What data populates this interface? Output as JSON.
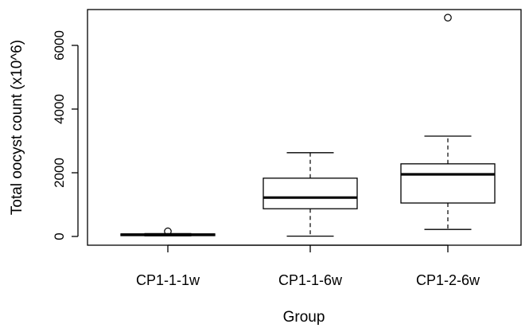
{
  "chart_data": {
    "type": "boxplot",
    "xlabel": "Group",
    "ylabel": "Total oocyst count (x10^6)",
    "categories": [
      "CP1-1-1w",
      "CP1-1-6w",
      "CP1-2-6w"
    ],
    "yticks": [
      0,
      2000,
      4000,
      6000
    ],
    "ytick_labels": [
      "0",
      "2000",
      "4000",
      "6000"
    ],
    "ylim": [
      -250,
      7000
    ],
    "boxes": [
      {
        "group": "CP1-1-1w",
        "whisker_low": 20,
        "q1": 25,
        "median": 55,
        "q3": 80,
        "whisker_high": 90,
        "outliers": [
          160
        ]
      },
      {
        "group": "CP1-1-6w",
        "whisker_low": 10,
        "q1": 870,
        "median": 1220,
        "q3": 1830,
        "whisker_high": 2630,
        "outliers": []
      },
      {
        "group": "CP1-2-6w",
        "whisker_low": 220,
        "q1": 1050,
        "median": 1950,
        "q3": 2280,
        "whisker_high": 3150,
        "outliers": [
          6870
        ]
      }
    ]
  }
}
